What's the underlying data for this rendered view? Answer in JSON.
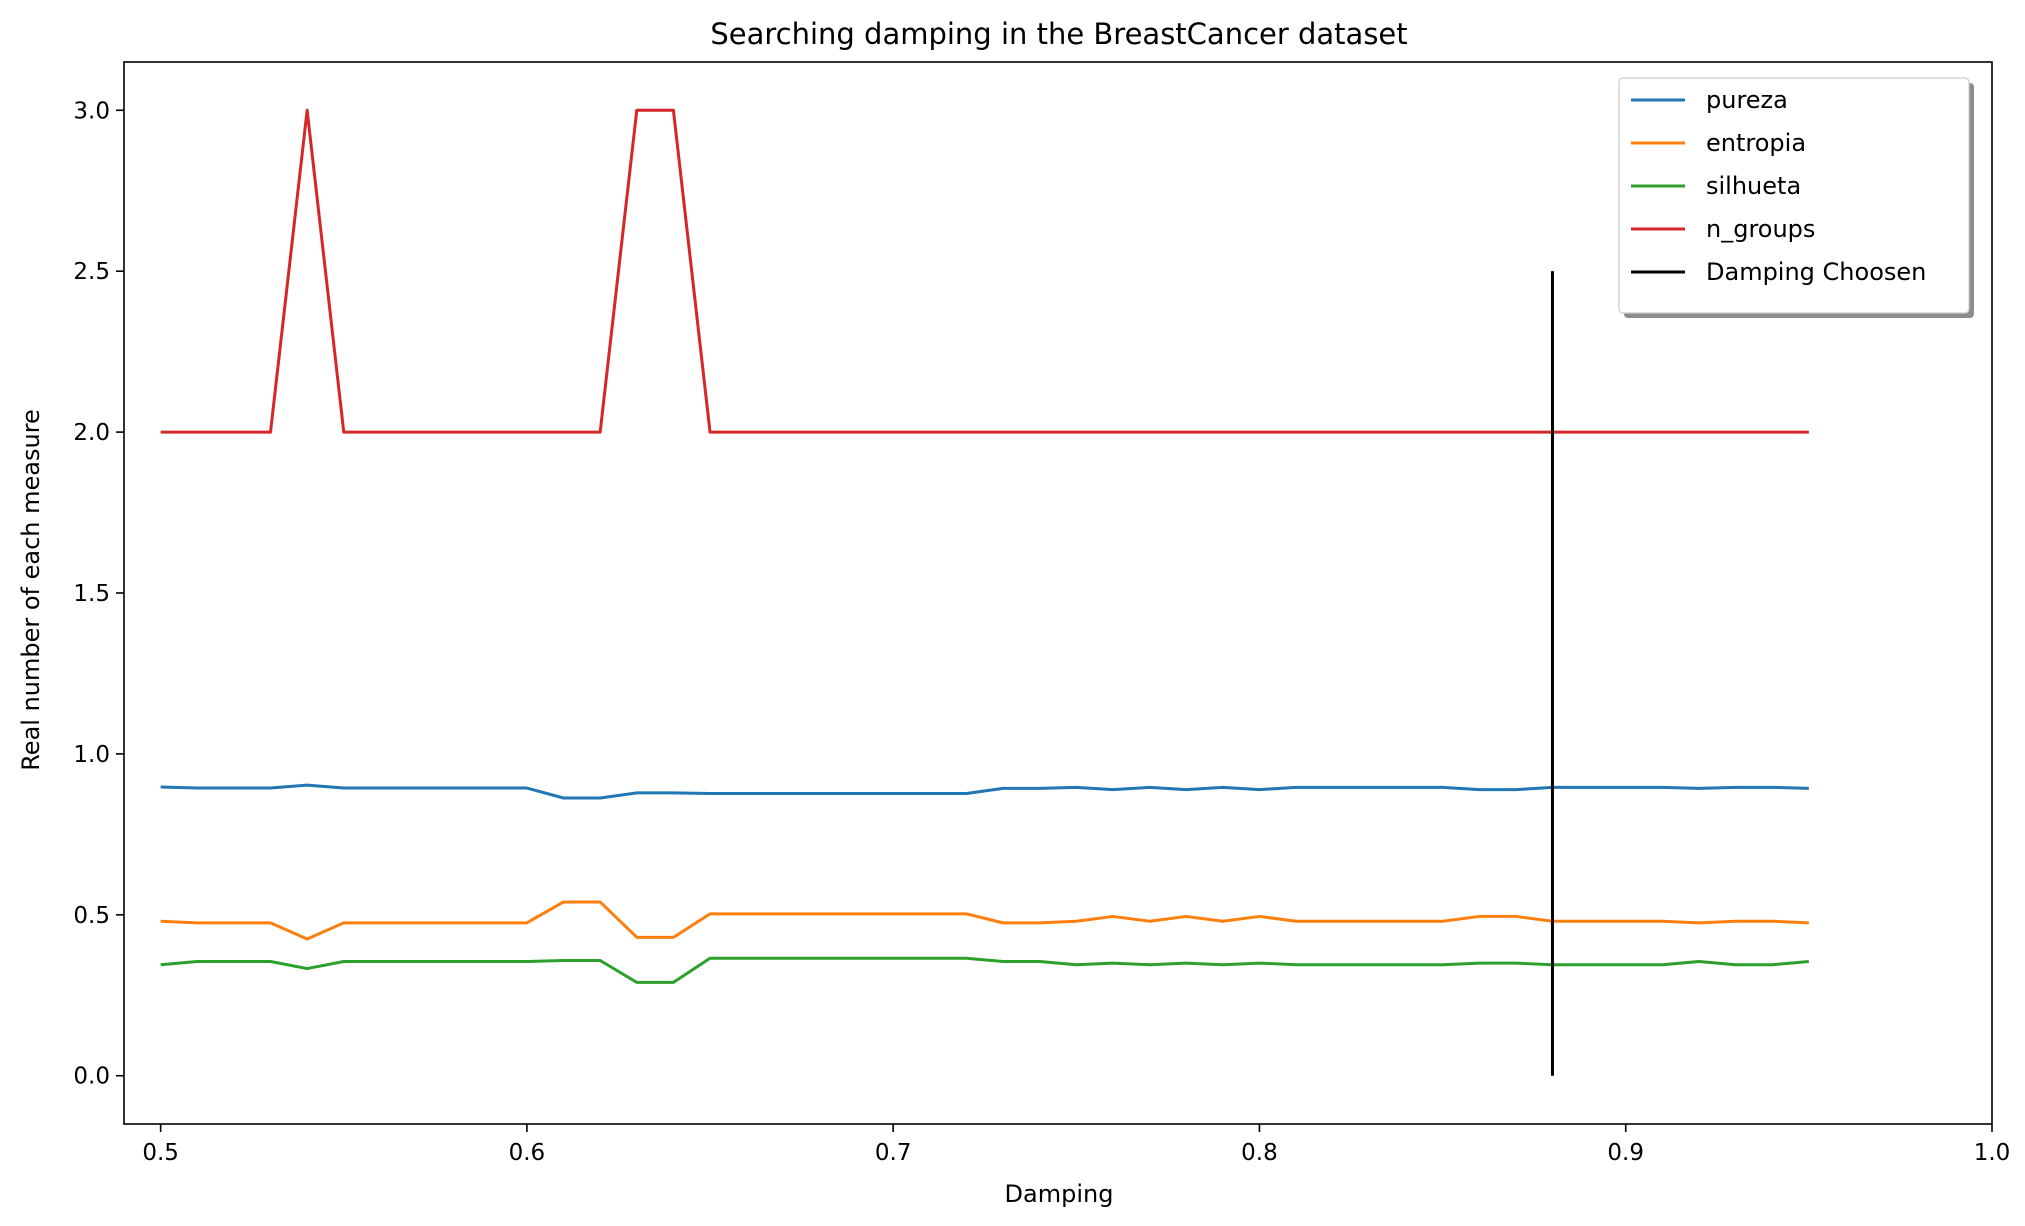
{
  "chart_data": {
    "type": "line",
    "title": "Searching damping in the BreastCancer dataset",
    "xlabel": "Damping",
    "ylabel": "Real number of each measure",
    "xlim": [
      0.49,
      1.0
    ],
    "ylim": [
      -0.15,
      3.15
    ],
    "xticks": [
      0.5,
      0.6,
      0.7,
      0.8,
      0.9,
      1.0
    ],
    "xtick_labels": [
      "0.5",
      "0.6",
      "0.7",
      "0.8",
      "0.9",
      "1.0"
    ],
    "yticks": [
      0.0,
      0.5,
      1.0,
      1.5,
      2.0,
      2.5,
      3.0
    ],
    "ytick_labels": [
      "0.0",
      "0.5",
      "1.0",
      "1.5",
      "2.0",
      "2.5",
      "3.0"
    ],
    "grid": false,
    "legend_position": "top-right",
    "x": [
      0.5,
      0.51,
      0.52,
      0.53,
      0.54,
      0.55,
      0.56,
      0.57,
      0.58,
      0.59,
      0.6,
      0.61,
      0.62,
      0.63,
      0.64,
      0.65,
      0.66,
      0.67,
      0.68,
      0.69,
      0.7,
      0.71,
      0.72,
      0.73,
      0.74,
      0.75,
      0.76,
      0.77,
      0.78,
      0.79,
      0.8,
      0.81,
      0.82,
      0.83,
      0.84,
      0.85,
      0.86,
      0.87,
      0.88,
      0.89,
      0.9,
      0.91,
      0.92,
      0.93,
      0.94,
      0.95
    ],
    "series": [
      {
        "name": "pureza",
        "color": "#1f77b4",
        "values": [
          0.897,
          0.894,
          0.894,
          0.894,
          0.903,
          0.894,
          0.894,
          0.894,
          0.894,
          0.894,
          0.894,
          0.863,
          0.863,
          0.879,
          0.879,
          0.877,
          0.877,
          0.877,
          0.877,
          0.877,
          0.877,
          0.877,
          0.877,
          0.893,
          0.893,
          0.896,
          0.889,
          0.896,
          0.889,
          0.896,
          0.889,
          0.896,
          0.896,
          0.896,
          0.896,
          0.896,
          0.889,
          0.889,
          0.896,
          0.896,
          0.896,
          0.896,
          0.893,
          0.896,
          0.896,
          0.893
        ]
      },
      {
        "name": "entropia",
        "color": "#ff7f0e",
        "values": [
          0.48,
          0.475,
          0.475,
          0.475,
          0.425,
          0.475,
          0.475,
          0.475,
          0.475,
          0.475,
          0.475,
          0.54,
          0.54,
          0.43,
          0.43,
          0.503,
          0.503,
          0.503,
          0.503,
          0.503,
          0.503,
          0.503,
          0.503,
          0.475,
          0.475,
          0.48,
          0.495,
          0.48,
          0.495,
          0.48,
          0.495,
          0.48,
          0.48,
          0.48,
          0.48,
          0.48,
          0.495,
          0.495,
          0.48,
          0.48,
          0.48,
          0.48,
          0.475,
          0.48,
          0.48,
          0.475
        ]
      },
      {
        "name": "silhueta",
        "color": "#2ca02c",
        "values": [
          0.345,
          0.355,
          0.355,
          0.355,
          0.333,
          0.355,
          0.355,
          0.355,
          0.355,
          0.355,
          0.355,
          0.358,
          0.358,
          0.29,
          0.29,
          0.365,
          0.365,
          0.365,
          0.365,
          0.365,
          0.365,
          0.365,
          0.365,
          0.355,
          0.355,
          0.345,
          0.35,
          0.345,
          0.35,
          0.345,
          0.35,
          0.345,
          0.345,
          0.345,
          0.345,
          0.345,
          0.35,
          0.35,
          0.345,
          0.345,
          0.345,
          0.345,
          0.355,
          0.345,
          0.345,
          0.355
        ]
      },
      {
        "name": "n_groups",
        "color": "#d62728",
        "values": [
          2,
          2,
          2,
          2,
          3,
          2,
          2,
          2,
          2,
          2,
          2,
          2,
          2,
          3,
          3,
          2,
          2,
          2,
          2,
          2,
          2,
          2,
          2,
          2,
          2,
          2,
          2,
          2,
          2,
          2,
          2,
          2,
          2,
          2,
          2,
          2,
          2,
          2,
          2,
          2,
          2,
          2,
          2,
          2,
          2,
          2
        ]
      },
      {
        "name": "Damping Choosen",
        "color": "#000000",
        "x": [
          0.88,
          0.88
        ],
        "values": [
          0.0,
          2.5
        ]
      }
    ]
  }
}
